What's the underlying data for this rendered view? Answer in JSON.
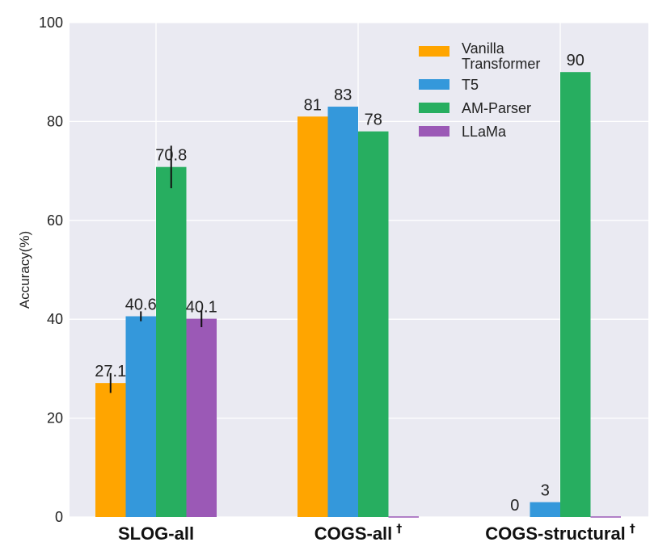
{
  "chart_data": {
    "type": "bar",
    "title": "",
    "xlabel": "",
    "ylabel": "Accuracy(%)",
    "ylim": [
      0,
      100
    ],
    "yticks": [
      0,
      20,
      40,
      60,
      80,
      100
    ],
    "grid": true,
    "legend_position": "top-right",
    "categories": [
      {
        "label": "SLOG-all",
        "sup": ""
      },
      {
        "label": "COGS-all",
        "sup": "†"
      },
      {
        "label": "COGS-structural",
        "sup": "†"
      }
    ],
    "series": [
      {
        "name": "Vanilla Transformer",
        "legend_lines": [
          "Vanilla",
          "Transformer"
        ],
        "color": "#FFA500",
        "values": [
          27.1,
          81,
          0
        ],
        "labels": [
          "27.1",
          "81",
          "0"
        ],
        "errors": [
          2.0,
          null,
          null
        ]
      },
      {
        "name": "T5",
        "legend_lines": [
          "T5"
        ],
        "color": "#3498DB",
        "values": [
          40.6,
          83,
          3
        ],
        "labels": [
          "40.6",
          "83",
          "3"
        ],
        "errors": [
          1.0,
          null,
          null
        ]
      },
      {
        "name": "AM-Parser",
        "legend_lines": [
          "AM-Parser"
        ],
        "color": "#27AE60",
        "values": [
          70.8,
          78,
          90
        ],
        "labels": [
          "70.8",
          "78",
          "90"
        ],
        "errors": [
          4.3,
          null,
          null
        ]
      },
      {
        "name": "LLaMa",
        "legend_lines": [
          "LLaMa"
        ],
        "color": "#9B59B6",
        "values": [
          40.1,
          null,
          null
        ],
        "labels": [
          "40.1",
          "",
          ""
        ],
        "errors": [
          1.7,
          null,
          null
        ]
      }
    ]
  }
}
